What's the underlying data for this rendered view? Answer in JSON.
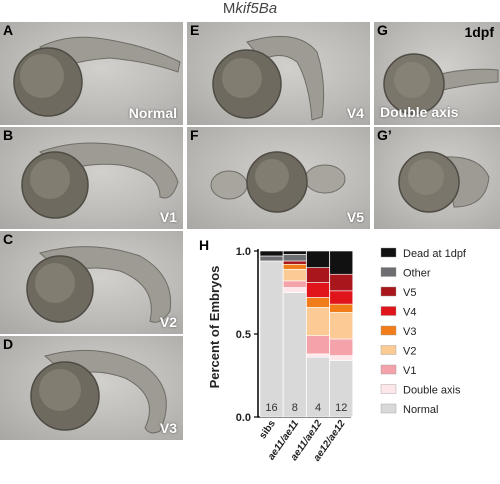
{
  "figure_title_prefix": "M",
  "figure_title_gene": "kif5Ba",
  "panels": {
    "A": {
      "label": "A",
      "caption": "Normal"
    },
    "B": {
      "label": "B",
      "caption": "V1"
    },
    "C": {
      "label": "C",
      "caption": "V2"
    },
    "D": {
      "label": "D",
      "caption": "V3"
    },
    "E": {
      "label": "E",
      "caption": "V4"
    },
    "F": {
      "label": "F",
      "caption": "V5"
    },
    "G": {
      "label": "G",
      "caption": "Double axis",
      "stage": "1dpf"
    },
    "G2": {
      "label": "G’"
    },
    "H": {
      "label": "H"
    }
  },
  "chart_data": {
    "type": "bar",
    "stacked": true,
    "ylabel": "Percent of Embryos",
    "ylim": [
      0,
      1.0
    ],
    "yticks": [
      "0.0",
      "0.5",
      "1.0"
    ],
    "categories": [
      "sibs",
      "ae11/ae11",
      "ae11/ae12",
      "ae12/ae12"
    ],
    "category_italic": [
      false,
      true,
      true,
      true
    ],
    "bar_counts": [
      "16",
      "8",
      "4",
      "12"
    ],
    "legend_position": "right",
    "series": [
      {
        "name": "Normal",
        "color": "#d9d9d9",
        "values": [
          0.94,
          0.75,
          0.36,
          0.34
        ]
      },
      {
        "name": "Double axis",
        "color": "#fde7ea",
        "values": [
          0.0,
          0.03,
          0.02,
          0.03
        ]
      },
      {
        "name": "V1",
        "color": "#f4a3aa",
        "values": [
          0.0,
          0.04,
          0.11,
          0.1
        ]
      },
      {
        "name": "V2",
        "color": "#fcca95",
        "values": [
          0.0,
          0.07,
          0.17,
          0.16
        ]
      },
      {
        "name": "V3",
        "color": "#f07c1a",
        "values": [
          0.0,
          0.03,
          0.06,
          0.05
        ]
      },
      {
        "name": "V4",
        "color": "#e0141b",
        "values": [
          0.0,
          0.0,
          0.09,
          0.08
        ]
      },
      {
        "name": "V5",
        "color": "#a9171c",
        "values": [
          0.0,
          0.02,
          0.09,
          0.1
        ]
      },
      {
        "name": "Other",
        "color": "#6d6e71",
        "values": [
          0.03,
          0.04,
          0.0,
          0.0
        ]
      },
      {
        "name": "Dead at 1dpf",
        "color": "#111111",
        "values": [
          0.03,
          0.02,
          0.1,
          0.14
        ]
      }
    ]
  }
}
